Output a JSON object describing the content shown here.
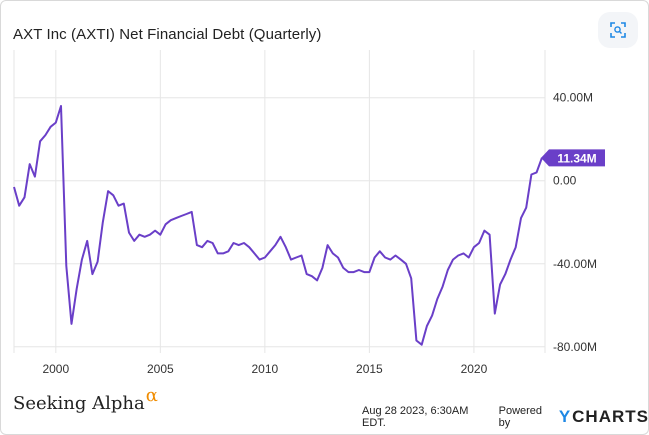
{
  "chart_data": {
    "type": "line",
    "title": "AXT Inc (AXTI) Net Financial Debt (Quarterly)",
    "xlabel": "",
    "ylabel": "",
    "xlim": [
      1998.0,
      2023.4
    ],
    "ylim": [
      -83,
      63
    ],
    "x_ticks": [
      2000,
      2005,
      2010,
      2015,
      2020
    ],
    "x_tick_labels": [
      "2000",
      "2005",
      "2010",
      "2015",
      "2020"
    ],
    "y_ticks": [
      40,
      0,
      -40,
      -80
    ],
    "y_tick_labels": [
      "40.00M",
      "0.00",
      "-40.00M",
      "-80.00M"
    ],
    "grid": true,
    "line_color": "#6a3fc8",
    "last_value_label": "11.34M",
    "series": [
      {
        "x": [
          1998.0,
          1998.25,
          1998.5,
          1998.75,
          1999.0,
          1999.25,
          1999.5,
          1999.75,
          2000.0,
          2000.25,
          2000.5,
          2000.75,
          2001.0,
          2001.25,
          2001.5,
          2001.75,
          2002.0,
          2002.25,
          2002.5,
          2002.75,
          2003.0,
          2003.25,
          2003.5,
          2003.75,
          2004.0,
          2004.25,
          2004.5,
          2004.75,
          2005.0,
          2005.25,
          2005.5,
          2005.75,
          2006.0,
          2006.25,
          2006.5,
          2006.75,
          2007.0,
          2007.25,
          2007.5,
          2007.75,
          2008.0,
          2008.25,
          2008.5,
          2008.75,
          2009.0,
          2009.25,
          2009.5,
          2009.75,
          2010.0,
          2010.25,
          2010.5,
          2010.75,
          2011.0,
          2011.25,
          2011.5,
          2011.75,
          2012.0,
          2012.25,
          2012.5,
          2012.75,
          2013.0,
          2013.25,
          2013.5,
          2013.75,
          2014.0,
          2014.25,
          2014.5,
          2014.75,
          2015.0,
          2015.25,
          2015.5,
          2015.75,
          2016.0,
          2016.25,
          2016.5,
          2016.75,
          2017.0,
          2017.25,
          2017.5,
          2017.75,
          2018.0,
          2018.25,
          2018.5,
          2018.75,
          2019.0,
          2019.25,
          2019.5,
          2019.75,
          2020.0,
          2020.25,
          2020.5,
          2020.75,
          2021.0,
          2021.25,
          2021.5,
          2021.75,
          2022.0,
          2022.25,
          2022.5,
          2022.75,
          2023.0,
          2023.25
        ],
        "y": [
          -3,
          -12,
          -8,
          8,
          2,
          19,
          22,
          26,
          28,
          36,
          -41,
          -69,
          -52,
          -38,
          -29,
          -45,
          -39,
          -20,
          -5,
          -7,
          -12,
          -11,
          -25,
          -29,
          -26,
          -27,
          -26,
          -24,
          -26,
          -21,
          -19,
          -18,
          -17,
          -16,
          -15,
          -31,
          -32,
          -29,
          -30,
          -35,
          -35,
          -34,
          -30,
          -31,
          -30,
          -32,
          -35,
          -38,
          -37,
          -34,
          -31,
          -27,
          -32,
          -38,
          -37,
          -36,
          -45,
          -46,
          -48,
          -42,
          -31,
          -35,
          -37,
          -42,
          -44,
          -44,
          -43,
          -44,
          -44,
          -37,
          -34,
          -37,
          -38,
          -36,
          -38,
          -40,
          -47,
          -77,
          -79,
          -70,
          -65,
          -57,
          -51,
          -43,
          -38,
          -36,
          -35,
          -37,
          -32,
          -30,
          -24,
          -26,
          -64,
          -50,
          -45,
          -38,
          -32,
          -18,
          -13,
          3,
          4,
          11
        ]
      }
    ]
  },
  "footer": {
    "brand": "Seeking Alpha",
    "brand_mark": "α",
    "timestamp": "Aug 28 2023, 6:30AM EDT.",
    "powered_by": "Powered by",
    "provider_mark": "Y",
    "provider": "CHARTS"
  },
  "icons": {
    "zoom": "zoom-icon"
  }
}
